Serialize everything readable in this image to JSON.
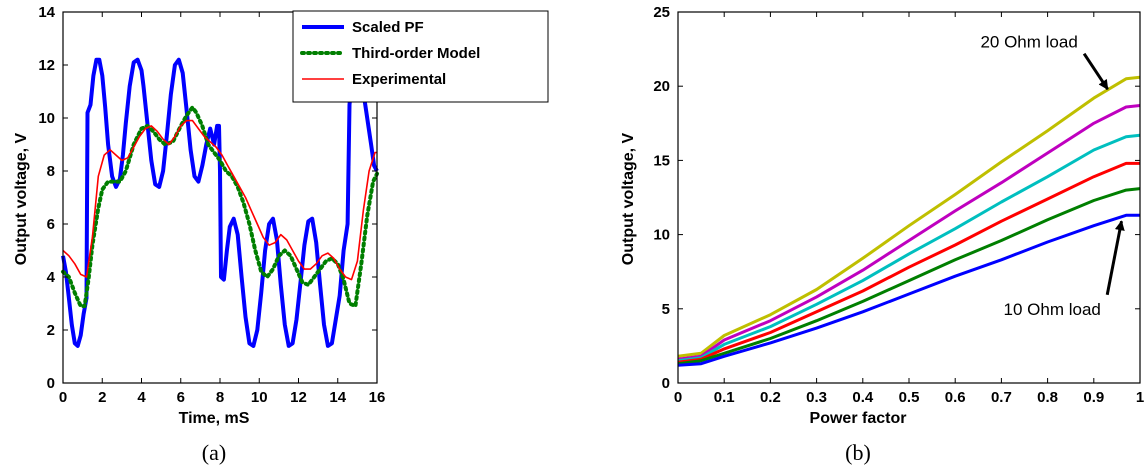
{
  "chart_data": [
    {
      "panel": "a",
      "type": "line",
      "caption": "(a)",
      "xlabel": "Time, mS",
      "ylabel": "Output voltage, V",
      "xlim": [
        0,
        16
      ],
      "ylim": [
        0,
        14
      ],
      "xticks": [
        "0",
        "2",
        "4",
        "6",
        "8",
        "10",
        "12",
        "14",
        "16"
      ],
      "yticks": [
        "0",
        "2",
        "4",
        "6",
        "8",
        "10",
        "12",
        "14"
      ],
      "grid": false,
      "legend_position": "top-right",
      "series": [
        {
          "name": "Scaled PF",
          "color": "#0000ff",
          "style": "solid-thick",
          "x": [
            0,
            0.15,
            0.3,
            0.45,
            0.6,
            0.75,
            0.9,
            1.05,
            1.2,
            1.25,
            1.4,
            1.55,
            1.7,
            1.85,
            2.0,
            2.15,
            2.3,
            2.5,
            2.7,
            2.9,
            3.05,
            3.2,
            3.4,
            3.6,
            3.8,
            4.0,
            4.1,
            4.3,
            4.5,
            4.7,
            4.9,
            5.1,
            5.3,
            5.5,
            5.7,
            5.9,
            6.1,
            6.3,
            6.5,
            6.7,
            6.9,
            7.1,
            7.3,
            7.5,
            7.7,
            7.85,
            7.95,
            8.0,
            8.05,
            8.2,
            8.35,
            8.5,
            8.7,
            8.9,
            9.1,
            9.3,
            9.5,
            9.7,
            9.9,
            10.1,
            10.3,
            10.5,
            10.7,
            10.9,
            11.1,
            11.3,
            11.5,
            11.7,
            11.9,
            12.1,
            12.3,
            12.5,
            12.7,
            12.9,
            13.1,
            13.3,
            13.5,
            13.7,
            13.9,
            14.1,
            14.3,
            14.5,
            14.6,
            14.65,
            14.8,
            14.95,
            15.1,
            15.3,
            15.5,
            15.7,
            15.85,
            16.0
          ],
          "y": [
            4.8,
            4.2,
            3.2,
            2.2,
            1.5,
            1.4,
            1.8,
            2.6,
            3.2,
            10.2,
            10.5,
            11.6,
            12.2,
            12.2,
            11.6,
            10.4,
            9.0,
            7.8,
            7.4,
            7.7,
            8.6,
            9.8,
            11.2,
            12.1,
            12.2,
            11.8,
            11.2,
            9.8,
            8.4,
            7.5,
            7.4,
            8.0,
            9.4,
            10.9,
            12.0,
            12.2,
            11.7,
            10.3,
            8.8,
            7.8,
            7.6,
            8.2,
            9.0,
            9.6,
            9.0,
            9.7,
            9.7,
            8.0,
            4.0,
            3.9,
            5.0,
            5.9,
            6.2,
            5.6,
            4.0,
            2.5,
            1.5,
            1.4,
            2.0,
            3.4,
            5.0,
            6.0,
            6.2,
            5.4,
            3.7,
            2.2,
            1.4,
            1.5,
            2.4,
            3.8,
            5.2,
            6.1,
            6.2,
            5.3,
            3.7,
            2.2,
            1.4,
            1.5,
            2.4,
            3.3,
            5.0,
            6.0,
            10.5,
            10.9,
            11.8,
            12.2,
            11.9,
            11.0,
            10.0,
            9.0,
            8.2,
            8.0
          ]
        },
        {
          "name": "Third-order Model",
          "color": "#007f00",
          "style": "dotted",
          "x": [
            0,
            0.3,
            0.6,
            0.9,
            1.1,
            1.3,
            1.5,
            1.8,
            2.0,
            2.3,
            2.6,
            2.9,
            3.2,
            3.6,
            4.0,
            4.3,
            4.6,
            4.9,
            5.2,
            5.6,
            6.0,
            6.3,
            6.6,
            6.8,
            7.1,
            7.4,
            7.7,
            8.0,
            8.3,
            8.6,
            8.9,
            9.2,
            9.5,
            9.8,
            10.1,
            10.4,
            10.7,
            11.0,
            11.3,
            11.6,
            11.9,
            12.2,
            12.5,
            12.8,
            13.1,
            13.4,
            13.7,
            14.0,
            14.3,
            14.6,
            14.9,
            15.2,
            15.5,
            15.8,
            16.0
          ],
          "y": [
            4.2,
            4.0,
            3.4,
            2.9,
            2.9,
            3.9,
            5.2,
            6.6,
            7.3,
            7.6,
            7.6,
            7.6,
            8.0,
            9.0,
            9.6,
            9.7,
            9.5,
            9.2,
            9.0,
            9.1,
            9.7,
            10.1,
            10.4,
            10.2,
            9.7,
            9.0,
            8.7,
            8.4,
            8.0,
            7.8,
            7.4,
            6.8,
            6.0,
            5.0,
            4.2,
            4.0,
            4.3,
            4.8,
            5.0,
            4.8,
            4.3,
            3.8,
            3.7,
            4.0,
            4.3,
            4.6,
            4.7,
            4.5,
            3.9,
            3.0,
            2.9,
            4.5,
            6.3,
            7.6,
            7.9
          ]
        },
        {
          "name": "Experimental",
          "color": "#ff0000",
          "style": "solid-thin",
          "x": [
            0,
            0.3,
            0.6,
            0.9,
            1.2,
            1.5,
            1.8,
            2.1,
            2.4,
            2.7,
            3.0,
            3.3,
            3.6,
            3.9,
            4.2,
            4.5,
            4.8,
            5.1,
            5.4,
            5.7,
            6.0,
            6.3,
            6.6,
            6.9,
            7.2,
            7.5,
            7.8,
            8.1,
            8.4,
            8.7,
            9.0,
            9.3,
            9.6,
            9.9,
            10.2,
            10.5,
            10.8,
            11.1,
            11.4,
            11.7,
            12.0,
            12.3,
            12.6,
            12.9,
            13.2,
            13.5,
            13.8,
            14.1,
            14.4,
            14.7,
            15.0,
            15.3,
            15.6,
            15.9,
            16.0
          ],
          "y": [
            5.0,
            4.8,
            4.5,
            4.1,
            4.0,
            5.5,
            7.8,
            8.6,
            8.8,
            8.6,
            8.4,
            8.5,
            8.9,
            9.3,
            9.6,
            9.7,
            9.5,
            9.2,
            9.0,
            9.3,
            9.7,
            9.9,
            9.9,
            9.6,
            9.3,
            9.1,
            8.9,
            8.6,
            8.2,
            7.8,
            7.4,
            7.0,
            6.5,
            6.0,
            5.5,
            5.2,
            5.3,
            5.6,
            5.4,
            5.0,
            4.6,
            4.3,
            4.3,
            4.5,
            4.8,
            4.9,
            4.7,
            4.3,
            4.0,
            3.9,
            4.6,
            6.5,
            8.0,
            8.7,
            8.7
          ]
        }
      ]
    },
    {
      "panel": "b",
      "type": "line",
      "caption": "(b)",
      "xlabel": "Power factor",
      "ylabel": "Output voltage, V",
      "xlim": [
        0,
        1
      ],
      "ylim": [
        0,
        25
      ],
      "xticks": [
        "0",
        "0.1",
        "0.2",
        "0.3",
        "0.4",
        "0.5",
        "0.6",
        "0.7",
        "0.8",
        "0.9",
        "1"
      ],
      "yticks": [
        "0",
        "5",
        "10",
        "15",
        "20",
        "25"
      ],
      "grid": false,
      "annotations": [
        {
          "text": "20 Ohm load",
          "target_x": 0.93,
          "target_y": 19.8,
          "text_x": 0.76,
          "text_y": 23.0
        },
        {
          "text": "10 Ohm load",
          "target_x": 0.96,
          "target_y": 10.9,
          "text_x": 0.81,
          "text_y": 5.0
        }
      ],
      "series": [
        {
          "color": "#bfbf00",
          "x": [
            0,
            0.05,
            0.1,
            0.2,
            0.3,
            0.4,
            0.5,
            0.6,
            0.7,
            0.8,
            0.9,
            0.97,
            1.0
          ],
          "y": [
            1.8,
            2.0,
            3.2,
            4.6,
            6.3,
            8.4,
            10.6,
            12.7,
            14.9,
            17.0,
            19.2,
            20.5,
            20.6
          ]
        },
        {
          "color": "#bf00bf",
          "x": [
            0,
            0.05,
            0.1,
            0.2,
            0.3,
            0.4,
            0.5,
            0.6,
            0.7,
            0.8,
            0.9,
            0.97,
            1.0
          ],
          "y": [
            1.6,
            1.8,
            2.9,
            4.2,
            5.8,
            7.6,
            9.6,
            11.6,
            13.5,
            15.5,
            17.5,
            18.6,
            18.7
          ]
        },
        {
          "color": "#00bfbf",
          "x": [
            0,
            0.05,
            0.1,
            0.2,
            0.3,
            0.4,
            0.5,
            0.6,
            0.7,
            0.8,
            0.9,
            0.97,
            1.0
          ],
          "y": [
            1.5,
            1.7,
            2.6,
            3.8,
            5.3,
            6.9,
            8.7,
            10.4,
            12.2,
            13.9,
            15.7,
            16.6,
            16.7
          ]
        },
        {
          "color": "#ff0000",
          "x": [
            0,
            0.05,
            0.1,
            0.2,
            0.3,
            0.4,
            0.5,
            0.6,
            0.7,
            0.8,
            0.9,
            0.97,
            1.0
          ],
          "y": [
            1.4,
            1.6,
            2.3,
            3.4,
            4.8,
            6.2,
            7.8,
            9.3,
            10.9,
            12.4,
            13.9,
            14.8,
            14.8
          ]
        },
        {
          "color": "#007f00",
          "x": [
            0,
            0.05,
            0.1,
            0.2,
            0.3,
            0.4,
            0.5,
            0.6,
            0.7,
            0.8,
            0.9,
            0.97,
            1.0
          ],
          "y": [
            1.3,
            1.5,
            2.0,
            3.0,
            4.2,
            5.5,
            6.9,
            8.3,
            9.6,
            11.0,
            12.3,
            13.0,
            13.1
          ]
        },
        {
          "color": "#0000ff",
          "x": [
            0,
            0.05,
            0.1,
            0.2,
            0.3,
            0.4,
            0.5,
            0.6,
            0.7,
            0.8,
            0.9,
            0.97,
            1.0
          ],
          "y": [
            1.2,
            1.3,
            1.8,
            2.7,
            3.7,
            4.8,
            6.0,
            7.2,
            8.3,
            9.5,
            10.6,
            11.3,
            11.3
          ]
        }
      ]
    }
  ]
}
